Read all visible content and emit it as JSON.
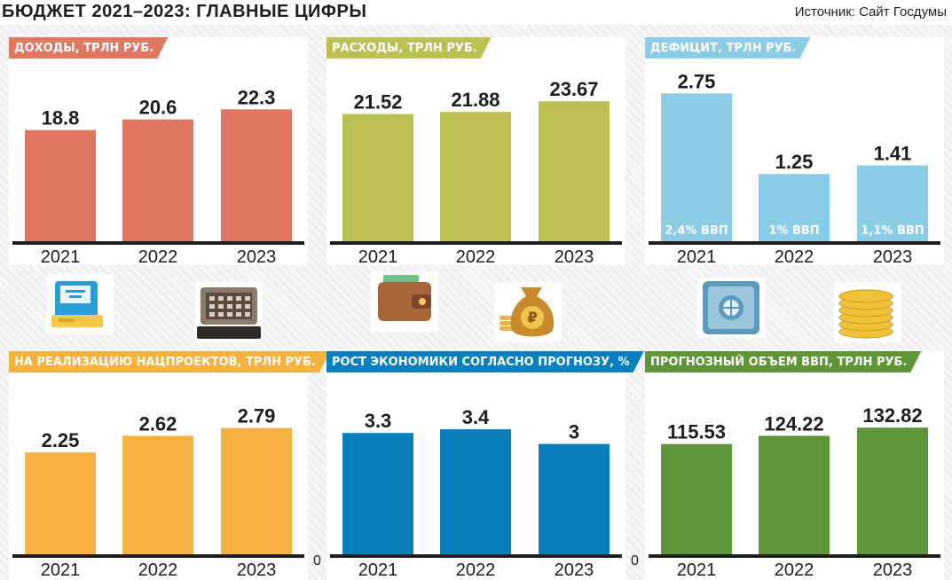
{
  "title": "БЮДЖЕТ 2021–2023: ГЛАВНЫЕ ЦИФРЫ",
  "source": "Источник: Сайт Госдумы",
  "icons": [
    "atm-icon",
    "cash-register-icon",
    "wallet-icon",
    "money-bag-icon",
    "safe-icon",
    "coins-icon"
  ],
  "zero_label": "0",
  "chart_data": [
    {
      "type": "bar",
      "title": "ДОХОДЫ, ТРЛН РУБ.",
      "color": "#e07761",
      "header_color": "#e07761",
      "categories": [
        "2021",
        "2022",
        "2023"
      ],
      "values": [
        18.8,
        20.6,
        22.3
      ],
      "labels": [
        "18.8",
        "20.6",
        "22.3"
      ],
      "ylim": [
        0,
        30
      ]
    },
    {
      "type": "bar",
      "title": "РАСХОДЫ, ТРЛН РУБ.",
      "color": "#bcc050",
      "header_color": "#bcc050",
      "categories": [
        "2021",
        "2022",
        "2023"
      ],
      "values": [
        21.52,
        21.88,
        23.67
      ],
      "labels": [
        "21.52",
        "21.88",
        "23.67"
      ],
      "ylim": [
        0,
        30
      ]
    },
    {
      "type": "bar",
      "title": "ДЕФИЦИТ, ТРЛН РУБ.",
      "color": "#8bcde6",
      "header_color": "#8bcde6",
      "categories": [
        "2021",
        "2022",
        "2023"
      ],
      "values": [
        2.75,
        1.25,
        1.41
      ],
      "labels": [
        "2.75",
        "1.25",
        "1.41"
      ],
      "inner_labels": [
        "2,4% ВВП",
        "1% ВВП",
        "1,1% ВВП"
      ],
      "ylim": [
        0,
        3.3
      ]
    },
    {
      "type": "bar",
      "title": "НА РЕАЛИЗАЦИЮ НАЦПРОЕКТОВ, ТРЛН РУБ.",
      "color": "#f6b141",
      "header_color": "#f6b141",
      "categories": [
        "2021",
        "2022",
        "2023"
      ],
      "values": [
        2.25,
        2.62,
        2.79
      ],
      "labels": [
        "2.25",
        "2.62",
        "2.79"
      ],
      "ylim": [
        0,
        3.9
      ]
    },
    {
      "type": "bar",
      "title": "РОСТ ЭКОНОМИКИ СОГЛАСНО ПРОГНОЗУ, %",
      "color": "#0a7fbd",
      "header_color": "#0a7fbd",
      "categories": [
        "2021",
        "2022",
        "2023"
      ],
      "values": [
        3.3,
        3.4,
        3
      ],
      "labels": [
        "3.3",
        "3.4",
        "3"
      ],
      "ylim": [
        0,
        4.8
      ]
    },
    {
      "type": "bar",
      "title": "ПРОГНОЗНЫЙ ОБЪЕМ ВВП, ТРЛН РУБ.",
      "color": "#5e9538",
      "header_color": "#5e9538",
      "categories": [
        "2021",
        "2022",
        "2023"
      ],
      "values": [
        115.53,
        124.22,
        132.82
      ],
      "labels": [
        "115.53",
        "124.22",
        "132.82"
      ],
      "ylim": [
        0,
        185
      ]
    }
  ]
}
